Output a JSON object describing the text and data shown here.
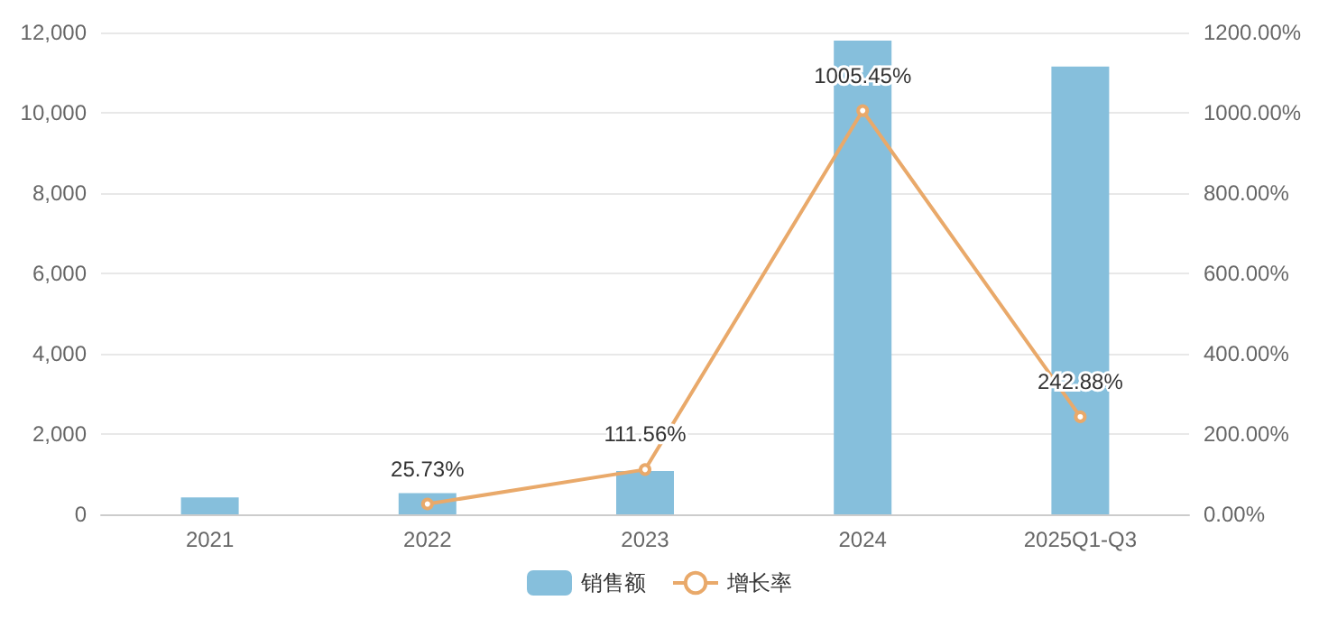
{
  "chart_data": {
    "type": "bar",
    "categories": [
      "2021",
      "2022",
      "2023",
      "2024",
      "2025Q1-Q3"
    ],
    "series": [
      {
        "name": "销售额",
        "color": "#86bfdc",
        "values": [
          420,
          530,
          1080,
          11800,
          11150
        ]
      },
      {
        "name": "增长率",
        "type": "line",
        "axis": "y2",
        "color": "#e9a96a",
        "values": [
          null,
          25.73,
          111.56,
          1005.45,
          242.88
        ],
        "value_labels": [
          null,
          "25.73%",
          "111.56%",
          "1005.45%",
          "242.88%"
        ]
      }
    ],
    "ylim": [
      0,
      12000
    ],
    "yticks": [
      {
        "value": 0,
        "label": "0"
      },
      {
        "value": 2000,
        "label": "2,000"
      },
      {
        "value": 4000,
        "label": "4,000"
      },
      {
        "value": 6000,
        "label": "6,000"
      },
      {
        "value": 8000,
        "label": "8,000"
      },
      {
        "value": 10000,
        "label": "10,000"
      },
      {
        "value": 12000,
        "label": "12,000"
      }
    ],
    "y2lim": [
      0,
      1200
    ],
    "y2ticks": [
      {
        "value": 0,
        "label": "0.00%"
      },
      {
        "value": 200,
        "label": "200.00%"
      },
      {
        "value": 400,
        "label": "400.00%"
      },
      {
        "value": 600,
        "label": "600.00%"
      },
      {
        "value": 800,
        "label": "800.00%"
      },
      {
        "value": 1000,
        "label": "1000.00%"
      },
      {
        "value": 1200,
        "label": "1200.00%"
      }
    ],
    "grid": "y",
    "legend": "bottom",
    "marker": "circle"
  }
}
